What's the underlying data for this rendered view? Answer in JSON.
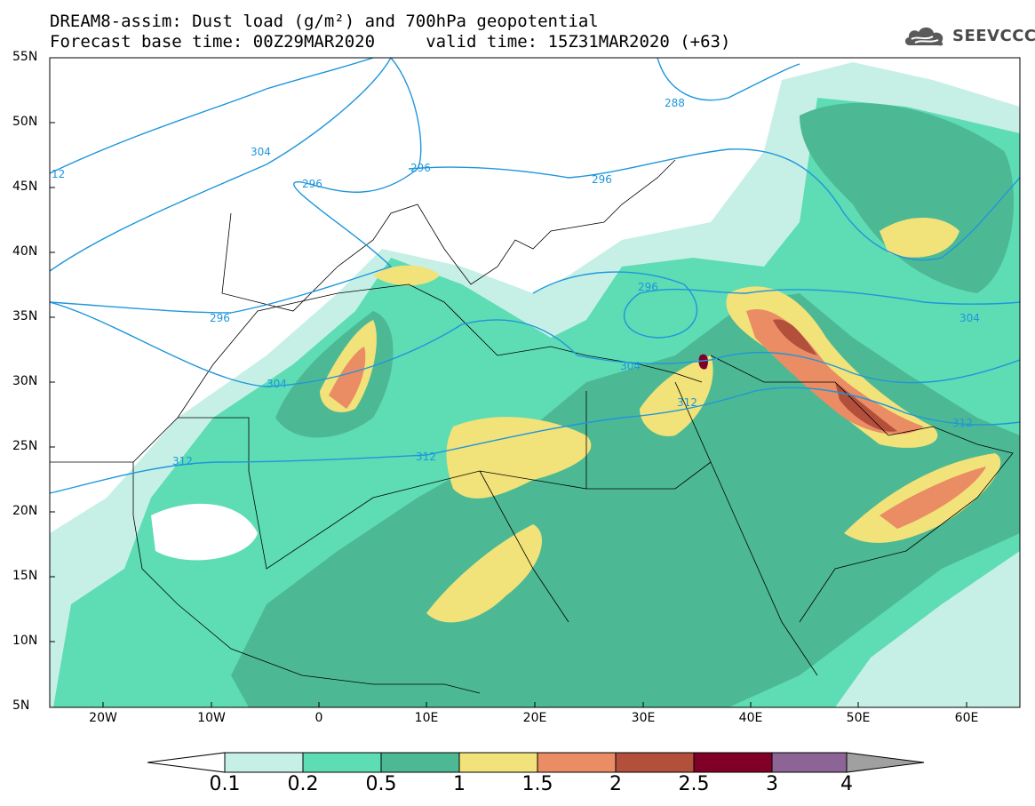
{
  "header": {
    "line1": "DREAM8-assim: Dust load (g/m²) and 700hPa geopotential",
    "line2": "Forecast base time: 00Z29MAR2020     valid time: 15Z31MAR2020 (+63)"
  },
  "logo": {
    "text": "SEEVCCC",
    "icon": "cloud-icon"
  },
  "axes": {
    "lat_labels": [
      "55N",
      "50N",
      "45N",
      "40N",
      "35N",
      "30N",
      "25N",
      "20N",
      "15N",
      "10N",
      "5N"
    ],
    "lon_labels": [
      "20W",
      "10W",
      "0",
      "10E",
      "20E",
      "30E",
      "40E",
      "50E",
      "60E"
    ]
  },
  "contour_labels": [
    "12",
    "304",
    "296",
    "296",
    "288",
    "296",
    "296",
    "296",
    "304",
    "304",
    "304",
    "312",
    "312",
    "312",
    "312"
  ],
  "colorbar": {
    "ticks": [
      "0.1",
      "0.2",
      "0.5",
      "1",
      "1.5",
      "2",
      "2.5",
      "3",
      "4"
    ],
    "colors": [
      "#ffffff",
      "#c6f0e6",
      "#5edcb4",
      "#4db994",
      "#f2e27a",
      "#ea8c64",
      "#b2503c",
      "#800028",
      "#8c6496",
      "#a0a0a0"
    ]
  },
  "colors": {
    "contour": "#1e96dc",
    "border": "#000000",
    "level_0_1": "#c6f0e6",
    "level_0_2": "#5edcb4",
    "level_0_5": "#4db994",
    "level_1": "#f2e27a",
    "level_1_5": "#ea8c64",
    "level_2": "#b2503c",
    "level_2_5": "#800028"
  }
}
